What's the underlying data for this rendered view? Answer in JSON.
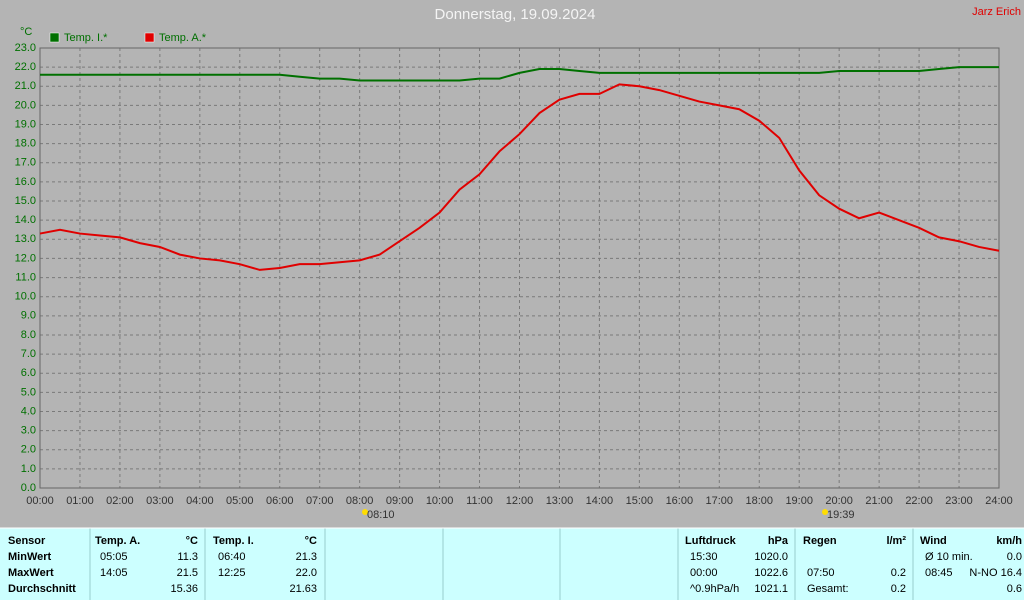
{
  "chart_data": {
    "type": "line",
    "title": "Donnerstag, 19.09.2024",
    "author": "Jarz Erich",
    "y_label": "°C",
    "x": [
      0,
      0.5,
      1,
      1.5,
      2,
      2.5,
      3,
      3.5,
      4,
      4.5,
      5,
      5.5,
      6,
      6.5,
      7,
      7.5,
      8,
      8.5,
      9,
      9.5,
      10,
      10.5,
      11,
      11.5,
      12,
      12.5,
      13,
      13.5,
      14,
      14.5,
      15,
      15.5,
      16,
      16.5,
      17,
      17.5,
      18,
      18.5,
      19,
      19.5,
      20,
      20.5,
      21,
      21.5,
      22,
      22.5,
      23,
      23.5,
      24
    ],
    "series": [
      {
        "name": "Temp. I.*",
        "color": "#007000",
        "values": [
          21.6,
          21.6,
          21.6,
          21.6,
          21.6,
          21.6,
          21.6,
          21.6,
          21.6,
          21.6,
          21.6,
          21.6,
          21.6,
          21.5,
          21.4,
          21.4,
          21.3,
          21.3,
          21.3,
          21.3,
          21.3,
          21.3,
          21.4,
          21.4,
          21.7,
          21.9,
          21.9,
          21.8,
          21.7,
          21.7,
          21.7,
          21.7,
          21.7,
          21.7,
          21.7,
          21.7,
          21.7,
          21.7,
          21.7,
          21.7,
          21.8,
          21.8,
          21.8,
          21.8,
          21.8,
          21.9,
          22.0,
          22.0,
          22.0
        ]
      },
      {
        "name": "Temp. A.*",
        "color": "#e00000",
        "values": [
          13.3,
          13.5,
          13.3,
          13.2,
          13.1,
          12.8,
          12.6,
          12.2,
          12.0,
          11.9,
          11.7,
          11.4,
          11.5,
          11.7,
          11.7,
          11.8,
          11.9,
          12.2,
          12.9,
          13.6,
          14.4,
          15.6,
          16.4,
          17.6,
          18.5,
          19.6,
          20.3,
          20.6,
          20.6,
          21.1,
          21.0,
          20.8,
          20.5,
          20.2,
          20.0,
          19.8,
          19.2,
          18.3,
          16.6,
          15.3,
          14.6,
          14.1,
          14.4,
          14.0,
          13.6,
          13.1,
          12.9,
          12.6,
          12.4
        ]
      }
    ],
    "xlim": [
      0,
      24
    ],
    "xticks": [
      {
        "value": 0,
        "label": "00:00"
      },
      {
        "value": 1,
        "label": "01:00"
      },
      {
        "value": 2,
        "label": "02:00"
      },
      {
        "value": 3,
        "label": "03:00"
      },
      {
        "value": 4,
        "label": "04:00"
      },
      {
        "value": 5,
        "label": "05:00"
      },
      {
        "value": 6,
        "label": "06:00"
      },
      {
        "value": 7,
        "label": "07:00"
      },
      {
        "value": 8,
        "label": "08:00"
      },
      {
        "value": 9,
        "label": "09:00"
      },
      {
        "value": 10,
        "label": "10:00"
      },
      {
        "value": 11,
        "label": "11:00"
      },
      {
        "value": 12,
        "label": "12:00"
      },
      {
        "value": 13,
        "label": "13:00"
      },
      {
        "value": 14,
        "label": "14:00"
      },
      {
        "value": 15,
        "label": "15:00"
      },
      {
        "value": 16,
        "label": "16:00"
      },
      {
        "value": 17,
        "label": "17:00"
      },
      {
        "value": 18,
        "label": "18:00"
      },
      {
        "value": 19,
        "label": "19:00"
      },
      {
        "value": 20,
        "label": "20:00"
      },
      {
        "value": 21,
        "label": "21:00"
      },
      {
        "value": 22,
        "label": "22:00"
      },
      {
        "value": 23,
        "label": "23:00"
      },
      {
        "value": 24,
        "label": "24:00"
      }
    ],
    "ylim": [
      0,
      23
    ],
    "yticks": [
      {
        "value": 0,
        "label": "0.0"
      },
      {
        "value": 1,
        "label": "1.0"
      },
      {
        "value": 2,
        "label": "2.0"
      },
      {
        "value": 3,
        "label": "3.0"
      },
      {
        "value": 4,
        "label": "4.0"
      },
      {
        "value": 5,
        "label": "5.0"
      },
      {
        "value": 6,
        "label": "6.0"
      },
      {
        "value": 7,
        "label": "7.0"
      },
      {
        "value": 8,
        "label": "8.0"
      },
      {
        "value": 9,
        "label": "9.0"
      },
      {
        "value": 10,
        "label": "10.0"
      },
      {
        "value": 11,
        "label": "11.0"
      },
      {
        "value": 12,
        "label": "12.0"
      },
      {
        "value": 13,
        "label": "13.0"
      },
      {
        "value": 14,
        "label": "14.0"
      },
      {
        "value": 15,
        "label": "15.0"
      },
      {
        "value": 16,
        "label": "16.0"
      },
      {
        "value": 17,
        "label": "17.0"
      },
      {
        "value": 18,
        "label": "18.0"
      },
      {
        "value": 19,
        "label": "19.0"
      },
      {
        "value": 20,
        "label": "20.0"
      },
      {
        "value": 21,
        "label": "21.0"
      },
      {
        "value": 22,
        "label": "22.0"
      },
      {
        "value": 23,
        "label": "23.0"
      }
    ],
    "grid": true,
    "annotations": [
      "08:10",
      "19:39"
    ]
  },
  "table": {
    "headers": [
      [
        "Sensor"
      ],
      [
        "Temp. A.",
        "°C"
      ],
      [
        "Temp. I.",
        "°C"
      ],
      [
        "Luftdruck",
        "hPa"
      ],
      [
        "Regen",
        "l/m²"
      ],
      [
        "Wind",
        "km/h"
      ]
    ],
    "rows": [
      {
        "label": "MinWert",
        "cells": [
          [
            "05:05",
            "11.3"
          ],
          [
            "06:40",
            "21.3"
          ],
          [
            "15:30",
            "1020.0"
          ],
          null,
          [
            "Ø 10 min.",
            "0.0"
          ]
        ]
      },
      {
        "label": "MaxWert",
        "cells": [
          [
            "14:05",
            "21.5"
          ],
          [
            "12:25",
            "22.0"
          ],
          [
            "00:00",
            "1022.6"
          ],
          [
            "07:50",
            "0.2"
          ],
          [
            "08:45",
            "N-NO 16.4"
          ]
        ]
      },
      {
        "label": "Durchschnitt",
        "cells": [
          [
            null,
            "15.36"
          ],
          [
            null,
            "21.63"
          ],
          [
            "^0.9hPa/h",
            "1021.1"
          ],
          [
            "Gesamt:",
            "0.2"
          ],
          [
            null,
            "0.6"
          ]
        ]
      }
    ]
  }
}
